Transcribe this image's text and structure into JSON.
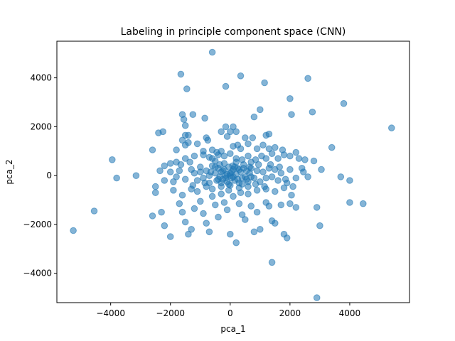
{
  "chart_data": {
    "type": "scatter",
    "title": "Labeling in principle component space (CNN)",
    "xlabel": "pca_1",
    "ylabel": "pca_2",
    "xlim": [
      -5800,
      6000
    ],
    "ylim": [
      -5200,
      5500
    ],
    "xticks": [
      -4000,
      -2000,
      0,
      2000,
      4000
    ],
    "yticks": [
      -4000,
      -2000,
      0,
      2000,
      4000
    ],
    "grid": false,
    "marker_color": "#1f77b4",
    "marker_alpha": 0.55,
    "series": [
      {
        "points": [
          [
            -600,
            5050
          ],
          [
            -1650,
            4150
          ],
          [
            350,
            4080
          ],
          [
            2600,
            3980
          ],
          [
            -1450,
            3550
          ],
          [
            -150,
            3650
          ],
          [
            1150,
            3800
          ],
          [
            2000,
            3150
          ],
          [
            3800,
            2950
          ],
          [
            -1600,
            2500
          ],
          [
            -1250,
            2500
          ],
          [
            -850,
            2350
          ],
          [
            800,
            2400
          ],
          [
            1000,
            2700
          ],
          [
            2050,
            2500
          ],
          [
            2750,
            2600
          ],
          [
            5400,
            1950
          ],
          [
            -2400,
            1750
          ],
          [
            -2250,
            1800
          ],
          [
            -1500,
            1650
          ],
          [
            -1400,
            1650
          ],
          [
            -1500,
            2050
          ],
          [
            -1550,
            2300
          ],
          [
            -800,
            1550
          ],
          [
            -750,
            1450
          ],
          [
            -300,
            1800
          ],
          [
            -150,
            2000
          ],
          [
            100,
            2000
          ],
          [
            0,
            1800
          ],
          [
            200,
            1800
          ],
          [
            -100,
            1600
          ],
          [
            500,
            1550
          ],
          [
            750,
            1550
          ],
          [
            1200,
            1650
          ],
          [
            1300,
            1700
          ],
          [
            -2600,
            1050
          ],
          [
            -1800,
            1050
          ],
          [
            -1500,
            1250
          ],
          [
            -1600,
            1450
          ],
          [
            -1400,
            1350
          ],
          [
            -1100,
            1300
          ],
          [
            -900,
            1000
          ],
          [
            -600,
            1050
          ],
          [
            -450,
            950
          ],
          [
            -300,
            1000
          ],
          [
            100,
            1200
          ],
          [
            250,
            1250
          ],
          [
            350,
            1100
          ],
          [
            600,
            1300
          ],
          [
            900,
            1100
          ],
          [
            1100,
            1250
          ],
          [
            1300,
            1100
          ],
          [
            1500,
            1150
          ],
          [
            1750,
            1050
          ],
          [
            2200,
            950
          ],
          [
            3400,
            1150
          ],
          [
            -3950,
            650
          ],
          [
            -2200,
            400
          ],
          [
            -2000,
            500
          ],
          [
            -1800,
            550
          ],
          [
            -1500,
            700
          ],
          [
            -1200,
            800
          ],
          [
            -900,
            850
          ],
          [
            -700,
            750
          ],
          [
            -500,
            600
          ],
          [
            -400,
            850
          ],
          [
            -200,
            800
          ],
          [
            0,
            900
          ],
          [
            200,
            700
          ],
          [
            400,
            650
          ],
          [
            600,
            800
          ],
          [
            850,
            650
          ],
          [
            1050,
            800
          ],
          [
            1200,
            700
          ],
          [
            1400,
            900
          ],
          [
            1600,
            700
          ],
          [
            1800,
            850
          ],
          [
            2000,
            800
          ],
          [
            2300,
            700
          ],
          [
            2500,
            650
          ],
          [
            2800,
            600
          ],
          [
            3050,
            250
          ],
          [
            -3800,
            -100
          ],
          [
            -3150,
            0
          ],
          [
            -2500,
            -450
          ],
          [
            -2200,
            -200
          ],
          [
            -2000,
            150
          ],
          [
            -1800,
            -50
          ],
          [
            -1700,
            200
          ],
          [
            -1500,
            -150
          ],
          [
            -1300,
            250
          ],
          [
            -1200,
            100
          ],
          [
            -1100,
            -200
          ],
          [
            -1000,
            350
          ],
          [
            -900,
            -100
          ],
          [
            -800,
            200
          ],
          [
            -700,
            -300
          ],
          [
            -600,
            400
          ],
          [
            -500,
            100
          ],
          [
            -450,
            -200
          ],
          [
            -400,
            300
          ],
          [
            -350,
            -50
          ],
          [
            -300,
            150
          ],
          [
            -250,
            -150
          ],
          [
            -200,
            250
          ],
          [
            -150,
            0
          ],
          [
            -100,
            -250
          ],
          [
            -50,
            350
          ],
          [
            0,
            100
          ],
          [
            50,
            -100
          ],
          [
            100,
            250
          ],
          [
            150,
            -200
          ],
          [
            200,
            50
          ],
          [
            250,
            300
          ],
          [
            300,
            -300
          ],
          [
            350,
            150
          ],
          [
            400,
            -100
          ],
          [
            450,
            300
          ],
          [
            500,
            -50
          ],
          [
            550,
            200
          ],
          [
            600,
            -250
          ],
          [
            650,
            100
          ],
          [
            700,
            300
          ],
          [
            800,
            -100
          ],
          [
            900,
            200
          ],
          [
            1000,
            -250
          ],
          [
            1100,
            150
          ],
          [
            1200,
            -100
          ],
          [
            1300,
            300
          ],
          [
            1400,
            -50
          ],
          [
            1500,
            250
          ],
          [
            1600,
            -200
          ],
          [
            1700,
            100
          ],
          [
            1850,
            -150
          ],
          [
            2000,
            250
          ],
          [
            2200,
            -100
          ],
          [
            2450,
            150
          ],
          [
            2600,
            -50
          ],
          [
            3700,
            -50
          ],
          [
            4000,
            -200
          ],
          [
            -4550,
            -1450
          ],
          [
            -5250,
            -2250
          ],
          [
            -2600,
            -1650
          ],
          [
            -2300,
            -1500
          ],
          [
            -2200,
            -2050
          ],
          [
            -2000,
            -2500
          ],
          [
            -1700,
            -1150
          ],
          [
            -1600,
            -1500
          ],
          [
            -1500,
            -1900
          ],
          [
            -1400,
            -2400
          ],
          [
            -1300,
            -2200
          ],
          [
            -1200,
            -1350
          ],
          [
            -1000,
            -1050
          ],
          [
            -900,
            -1550
          ],
          [
            -800,
            -1950
          ],
          [
            -700,
            -2300
          ],
          [
            -600,
            -850
          ],
          [
            -500,
            -1200
          ],
          [
            -400,
            -1700
          ],
          [
            -300,
            -750
          ],
          [
            -200,
            -1100
          ],
          [
            -100,
            -1400
          ],
          [
            0,
            -2400
          ],
          [
            200,
            -2750
          ],
          [
            100,
            -850
          ],
          [
            300,
            -1150
          ],
          [
            400,
            -1600
          ],
          [
            500,
            -1800
          ],
          [
            600,
            -750
          ],
          [
            700,
            -1250
          ],
          [
            800,
            -2300
          ],
          [
            900,
            -1500
          ],
          [
            1000,
            -2200
          ],
          [
            1200,
            -1100
          ],
          [
            1300,
            -1250
          ],
          [
            1400,
            -1850
          ],
          [
            1500,
            -1950
          ],
          [
            1700,
            -1200
          ],
          [
            1800,
            -2400
          ],
          [
            1900,
            -2550
          ],
          [
            2000,
            -1150
          ],
          [
            2050,
            -800
          ],
          [
            2200,
            -1300
          ],
          [
            2900,
            -1300
          ],
          [
            3000,
            -2050
          ],
          [
            4000,
            -1100
          ],
          [
            4450,
            -1150
          ],
          [
            1400,
            -3550
          ],
          [
            2900,
            -5000
          ],
          [
            -2500,
            -700
          ],
          [
            -1900,
            -600
          ],
          [
            -1600,
            -800
          ],
          [
            -1300,
            -550
          ],
          [
            -1100,
            -650
          ],
          [
            -800,
            -450
          ],
          [
            -600,
            -550
          ],
          [
            -300,
            -450
          ],
          [
            0,
            -400
          ],
          [
            300,
            -500
          ],
          [
            600,
            -450
          ],
          [
            900,
            -600
          ],
          [
            1200,
            -550
          ],
          [
            1500,
            -650
          ],
          [
            1800,
            -500
          ],
          [
            2100,
            -450
          ],
          [
            -200,
            500
          ],
          [
            200,
            550
          ],
          [
            -600,
            700
          ],
          [
            700,
            550
          ],
          [
            -50,
            -600
          ],
          [
            350,
            -700
          ],
          [
            -350,
            450
          ],
          [
            450,
            450
          ],
          [
            -700,
            0
          ],
          [
            700,
            -50
          ],
          [
            -100,
            50
          ],
          [
            100,
            -50
          ],
          [
            0,
            0
          ],
          [
            50,
            150
          ],
          [
            -150,
            -100
          ],
          [
            250,
            -150
          ],
          [
            -250,
            200
          ],
          [
            150,
            350
          ],
          [
            -300,
            -300
          ],
          [
            300,
            250
          ],
          [
            -50,
            -350
          ],
          [
            80,
            400
          ],
          [
            -400,
            -150
          ],
          [
            400,
            -350
          ],
          [
            -500,
            350
          ],
          [
            550,
            -150
          ],
          [
            -650,
            150
          ],
          [
            650,
            350
          ],
          [
            -850,
            -300
          ],
          [
            850,
            -350
          ],
          [
            -1000,
            150
          ],
          [
            950,
            450
          ],
          [
            -1250,
            -400
          ],
          [
            1150,
            -450
          ],
          [
            1350,
            450
          ],
          [
            -1350,
            550
          ],
          [
            1650,
            350
          ],
          [
            -1650,
            450
          ],
          [
            1900,
            -300
          ],
          [
            -1900,
            -250
          ],
          [
            2400,
            300
          ],
          [
            -2350,
            200
          ]
        ]
      }
    ]
  }
}
